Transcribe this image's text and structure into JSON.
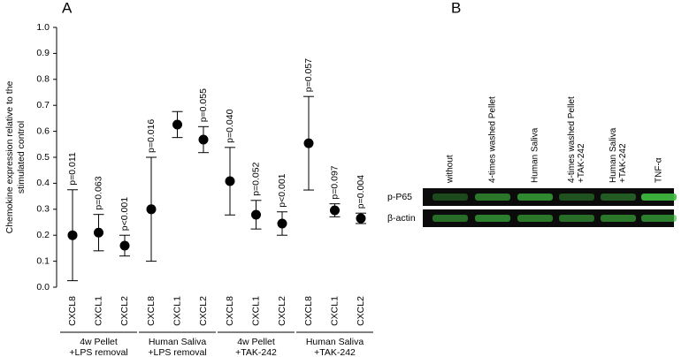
{
  "chart_data": {
    "type": "errorbar_dot",
    "panel_label": "A",
    "ylabel": [
      "Chemokine expression relative to the",
      "stimulated control"
    ],
    "categories": [
      "CXCL8",
      "CXCL1",
      "CXCL2",
      "CXCL8",
      "CXCL1",
      "CXCL2",
      "CXCL8",
      "CXCL1",
      "CXCL2",
      "CXCL8",
      "CXCL1",
      "CXCL2"
    ],
    "values": [
      0.2,
      0.21,
      0.16,
      0.3,
      0.626,
      0.568,
      0.408,
      0.279,
      0.245,
      0.554,
      0.296,
      0.265
    ],
    "errors": [
      0.175,
      0.07,
      0.04,
      0.2,
      0.05,
      0.05,
      0.13,
      0.055,
      0.045,
      0.18,
      0.025,
      0.02
    ],
    "annotations": [
      "p=0.011",
      "p=0.063",
      "p<0.001",
      "p=0.016",
      null,
      "p=0.055",
      "p=0.040",
      "p=0.052",
      "p<0.001",
      "p=0.057",
      "p=0.097",
      "p=0.004"
    ],
    "groups": [
      [
        "4w Pellet",
        "+LPS removal"
      ],
      [
        "Human Saliva",
        "+LPS removal"
      ],
      [
        "4w Pellet",
        "+TAK-242"
      ],
      [
        "Human Saliva",
        "+TAK-242"
      ]
    ],
    "color": "#000000",
    "ylim": [
      0,
      1.0
    ],
    "yticks": [
      {
        "value": 0,
        "label": "0.0"
      },
      0.1,
      0.2,
      0.3,
      0.4,
      0.5,
      0.6,
      0.7,
      0.8,
      0.9,
      {
        "value": 1.0,
        "label": "1.0"
      }
    ]
  },
  "blot": {
    "panel_label": "B",
    "lanes": [
      [
        "without"
      ],
      [
        "4-times washed Pellet"
      ],
      [
        "Human Saliva"
      ],
      [
        "4-times washed Pellet",
        "+TAK-242"
      ],
      [
        "Human Saliva",
        "+TAK-242"
      ],
      [
        "TNF-α"
      ]
    ],
    "rows": [
      "p-P65",
      "β-actin"
    ]
  }
}
